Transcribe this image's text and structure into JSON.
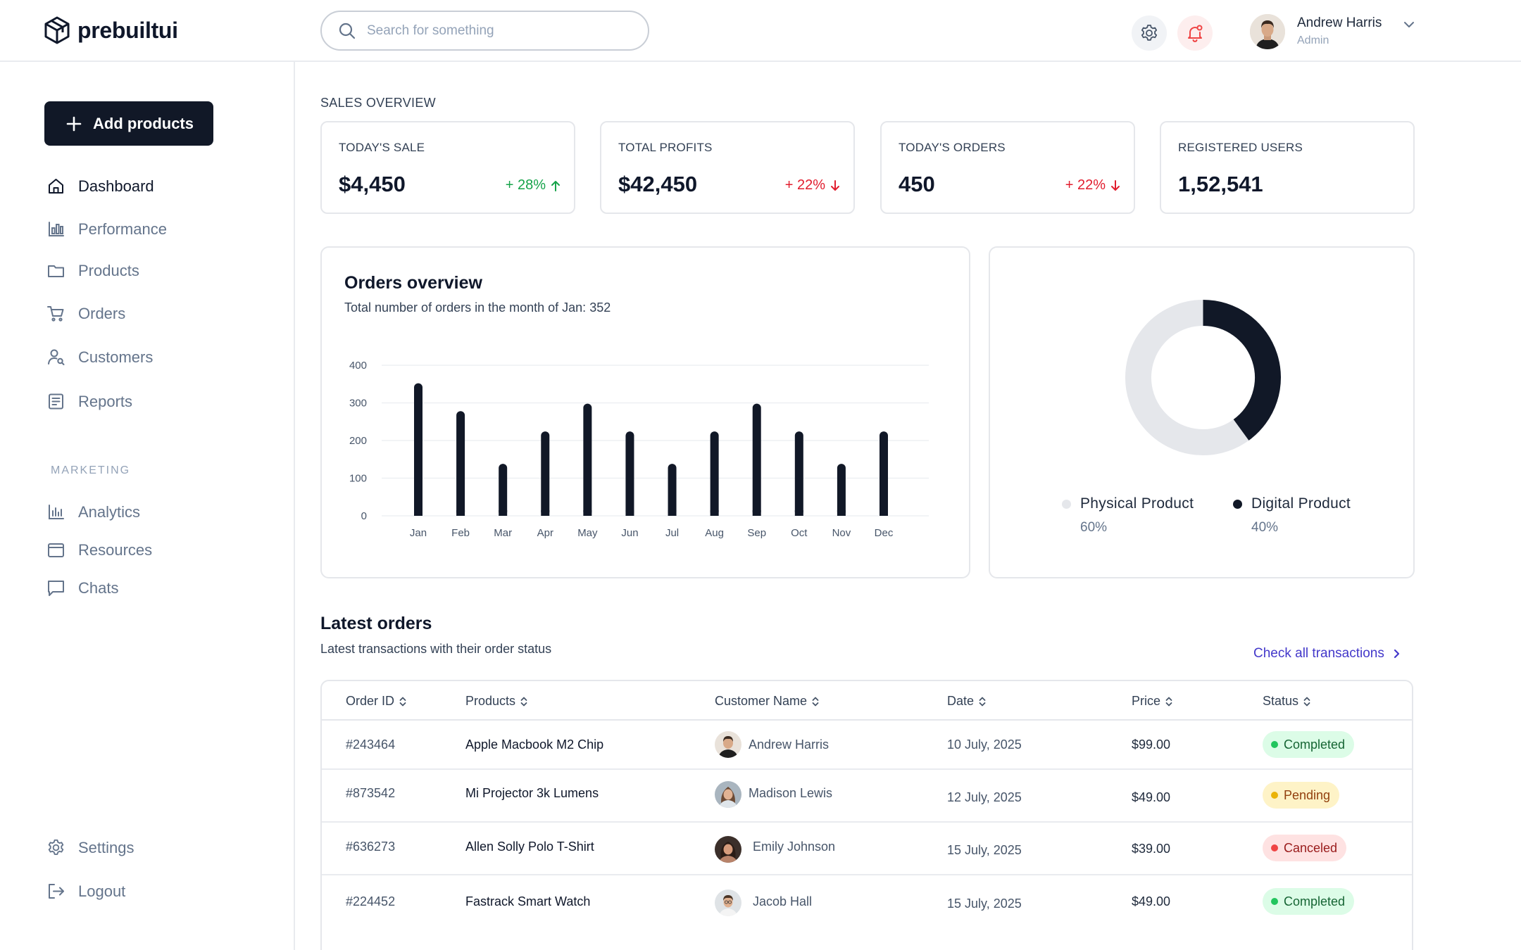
{
  "brand": {
    "name": "prebuiltui"
  },
  "search": {
    "placeholder": "Search for something"
  },
  "user": {
    "name": "Andrew Harris",
    "role": "Admin"
  },
  "sidebar": {
    "add_button": "Add products",
    "items": [
      {
        "label": "Dashboard",
        "icon": "home-icon",
        "active": true
      },
      {
        "label": "Performance",
        "icon": "bar-chart-icon"
      },
      {
        "label": "Products",
        "icon": "folder-icon"
      },
      {
        "label": "Orders",
        "icon": "cart-icon"
      },
      {
        "label": "Customers",
        "icon": "user-search-icon"
      },
      {
        "label": "Reports",
        "icon": "document-icon"
      }
    ],
    "marketing_label": "MARKETING",
    "marketing_items": [
      {
        "label": "Analytics",
        "icon": "analytics-icon"
      },
      {
        "label": "Resources",
        "icon": "wallet-icon"
      },
      {
        "label": "Chats",
        "icon": "chat-icon"
      }
    ],
    "bottom_items": [
      {
        "label": "Settings",
        "icon": "gear-icon"
      },
      {
        "label": "Logout",
        "icon": "logout-icon"
      }
    ]
  },
  "sales_overview": {
    "label": "SALES OVERVIEW",
    "cards": [
      {
        "title": "TODAY'S SALE",
        "value": "$4,450",
        "delta": "+ 28%",
        "trend": "up"
      },
      {
        "title": "TOTAL PROFITS",
        "value": "$42,450",
        "delta": "+ 22%",
        "trend": "down"
      },
      {
        "title": "TODAY'S ORDERS",
        "value": "450",
        "delta": "+ 22%",
        "trend": "down"
      },
      {
        "title": "REGISTERED USERS",
        "value": "1,52,541",
        "delta": "",
        "trend": ""
      }
    ]
  },
  "orders_overview": {
    "title": "Orders overview",
    "subtitle": "Total number of orders in the month of Jan: 352"
  },
  "chart_data": [
    {
      "type": "bar",
      "categories": [
        "Jan",
        "Feb",
        "Mar",
        "Apr",
        "May",
        "Jun",
        "Jul",
        "Aug",
        "Sep",
        "Oct",
        "Nov",
        "Dec"
      ],
      "values": [
        352,
        278,
        138,
        224,
        298,
        224,
        138,
        224,
        298,
        224,
        138,
        224
      ],
      "yticks": [
        0,
        100,
        200,
        300,
        400
      ],
      "ylim": [
        0,
        400
      ],
      "grid": true,
      "color": "#111827"
    },
    {
      "type": "pie",
      "donut": true,
      "labels": [
        "Physical Product",
        "Digital Product"
      ],
      "values": [
        60,
        40
      ],
      "value_labels": [
        "60%",
        "40%"
      ],
      "colors": [
        "#e5e7eb",
        "#111827"
      ]
    }
  ],
  "latest_orders": {
    "title": "Latest orders",
    "subtitle": "Latest transactions with their order status",
    "link": "Check all transactions",
    "columns": [
      "Order ID",
      "Products",
      "Customer Name",
      "Date",
      "Price",
      "Status"
    ],
    "rows": [
      {
        "id": "#243464",
        "product": "Apple Macbook M2 Chip",
        "customer": "Andrew Harris",
        "date": "10 July, 2025",
        "price": "$99.00",
        "status": "Completed",
        "status_key": "completed"
      },
      {
        "id": "#873542",
        "product": "Mi Projector 3k Lumens",
        "customer": "Madison Lewis",
        "date": "12 July, 2025",
        "price": "$49.00",
        "status": "Pending",
        "status_key": "pending"
      },
      {
        "id": "#636273",
        "product": "Allen Solly Polo T-Shirt",
        "customer": "Emily Johnson",
        "date": "15 July, 2025",
        "price": "$39.00",
        "status": "Canceled",
        "status_key": "canceled"
      },
      {
        "id": "#224452",
        "product": "Fastrack Smart Watch",
        "customer": "Jacob Hall",
        "date": "15 July, 2025",
        "price": "$49.00",
        "status": "Completed",
        "status_key": "completed"
      }
    ]
  }
}
